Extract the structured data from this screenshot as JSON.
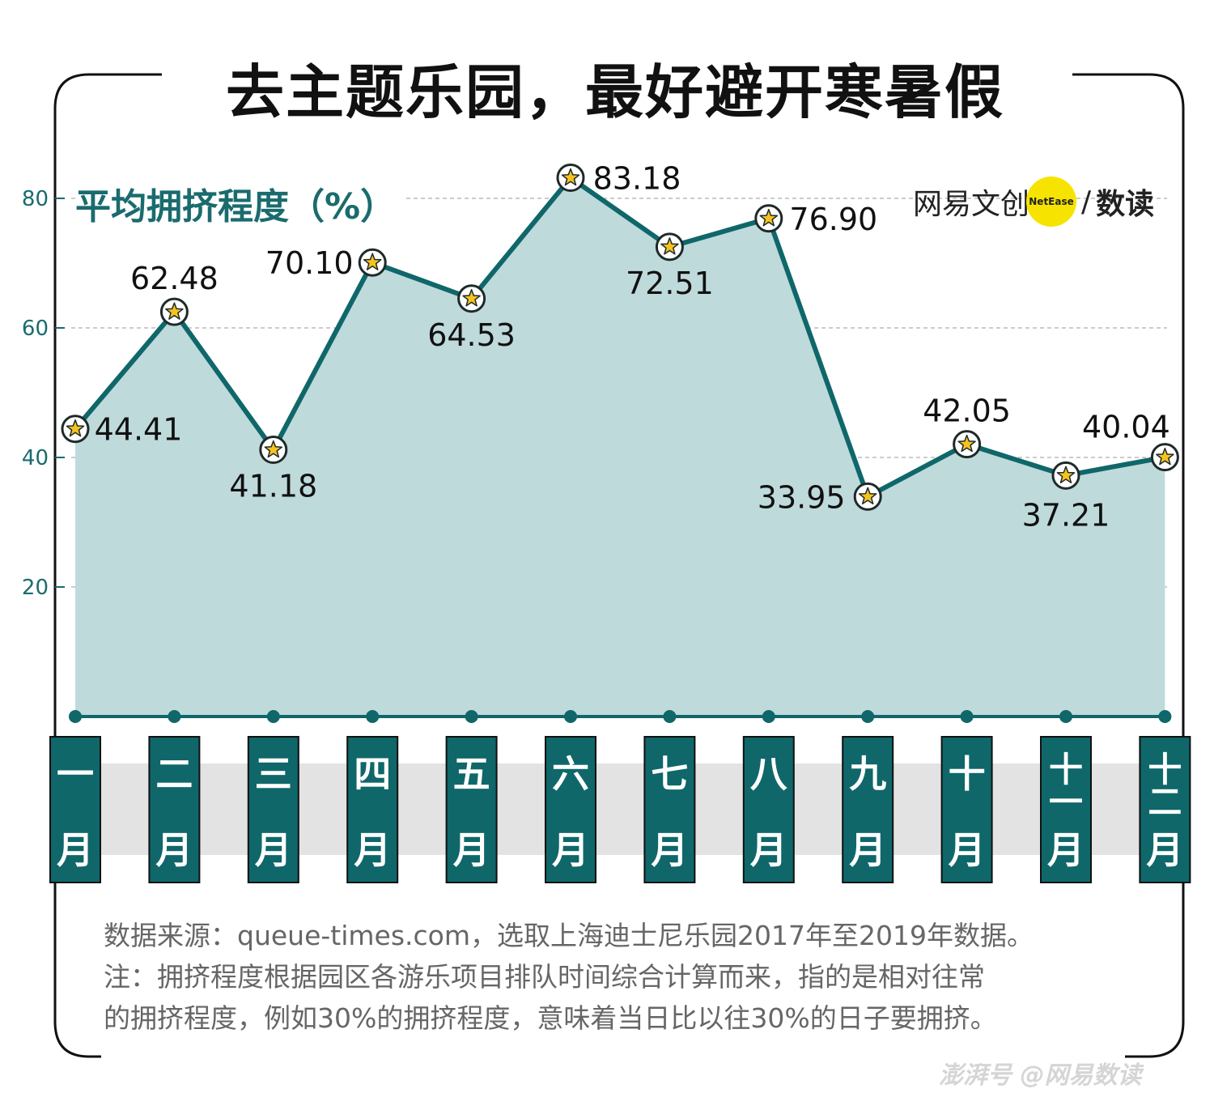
{
  "title": "去主题乐园，最好避开寒暑假",
  "brand": {
    "name": "网易文创",
    "badge": "NetEase",
    "slash": "/",
    "sub": "数读"
  },
  "notes": {
    "source": "数据来源：queue-times.com，选取上海迪士尼乐园2017年至2019年数据。",
    "note_line1": "注：拥挤程度根据园区各游乐项目排队时间综合计算而来，指的是相对往常",
    "note_line2": "的拥挤程度，例如30%的拥挤程度，意味着当日比以往30%的日子要拥挤。"
  },
  "watermark": "澎湃号 @网易数读",
  "colors": {
    "line": "#0f676a",
    "area": "#bfdadb",
    "accent_text": "#1a6b6e",
    "star": "#f5c320",
    "month_box": "#0f676a",
    "month_band": "#e3e3e3"
  },
  "chart_data": {
    "type": "area",
    "ylabel": "平均拥挤程度（%）",
    "yticks": [
      20,
      40,
      60,
      80
    ],
    "ylim": [
      0,
      100
    ],
    "grid": true,
    "categories": [
      "一月",
      "二月",
      "三月",
      "四月",
      "五月",
      "六月",
      "七月",
      "八月",
      "九月",
      "十月",
      "十一月",
      "十二月"
    ],
    "values": [
      44.41,
      62.48,
      41.18,
      70.1,
      64.53,
      83.18,
      72.51,
      76.9,
      33.95,
      42.05,
      37.21,
      40.04
    ],
    "value_labels": [
      "44.41",
      "62.48",
      "41.18",
      "70.10",
      "64.53",
      "83.18",
      "72.51",
      "76.90",
      "33.95",
      "42.05",
      "37.21",
      "40.04"
    ],
    "month_chars": [
      [
        "一",
        "月"
      ],
      [
        "二",
        "月"
      ],
      [
        "三",
        "月"
      ],
      [
        "四",
        "月"
      ],
      [
        "五",
        "月"
      ],
      [
        "六",
        "月"
      ],
      [
        "七",
        "月"
      ],
      [
        "八",
        "月"
      ],
      [
        "九",
        "月"
      ],
      [
        "十",
        "月"
      ],
      [
        "十一",
        "月"
      ],
      [
        "十二",
        "月"
      ]
    ]
  }
}
